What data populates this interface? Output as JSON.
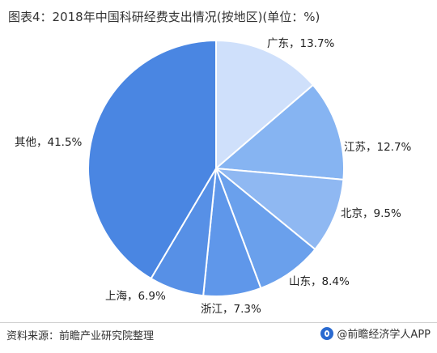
{
  "title": "图表4：2018年中国科研经费支出情况(按地区)(单位：%)",
  "source": "资料来源：前瞻产业研究院整理",
  "brand": "@前瞻经济学人APP",
  "chart_data": {
    "type": "pie",
    "title": "图表4：2018年中国科研经费支出情况(按地区)(单位：%)",
    "unit": "%",
    "slices": [
      {
        "name": "广东",
        "value": 13.7,
        "label": "广东，13.7%",
        "color": "#cfe0fb"
      },
      {
        "name": "江苏",
        "value": 12.7,
        "label": "江苏，12.7%",
        "color": "#86b4f2"
      },
      {
        "name": "北京",
        "value": 9.5,
        "label": "北京，9.5%",
        "color": "#8fb8f2"
      },
      {
        "name": "山东",
        "value": 8.4,
        "label": "山东，8.4%",
        "color": "#6aa0ec"
      },
      {
        "name": "浙江",
        "value": 7.3,
        "label": "浙江，7.3%",
        "color": "#5f97ea"
      },
      {
        "name": "上海",
        "value": 6.9,
        "label": "上海，6.9%",
        "color": "#5790e6"
      },
      {
        "name": "其他",
        "value": 41.5,
        "label": "其他，41.5%",
        "color": "#4a86e2"
      }
    ]
  }
}
